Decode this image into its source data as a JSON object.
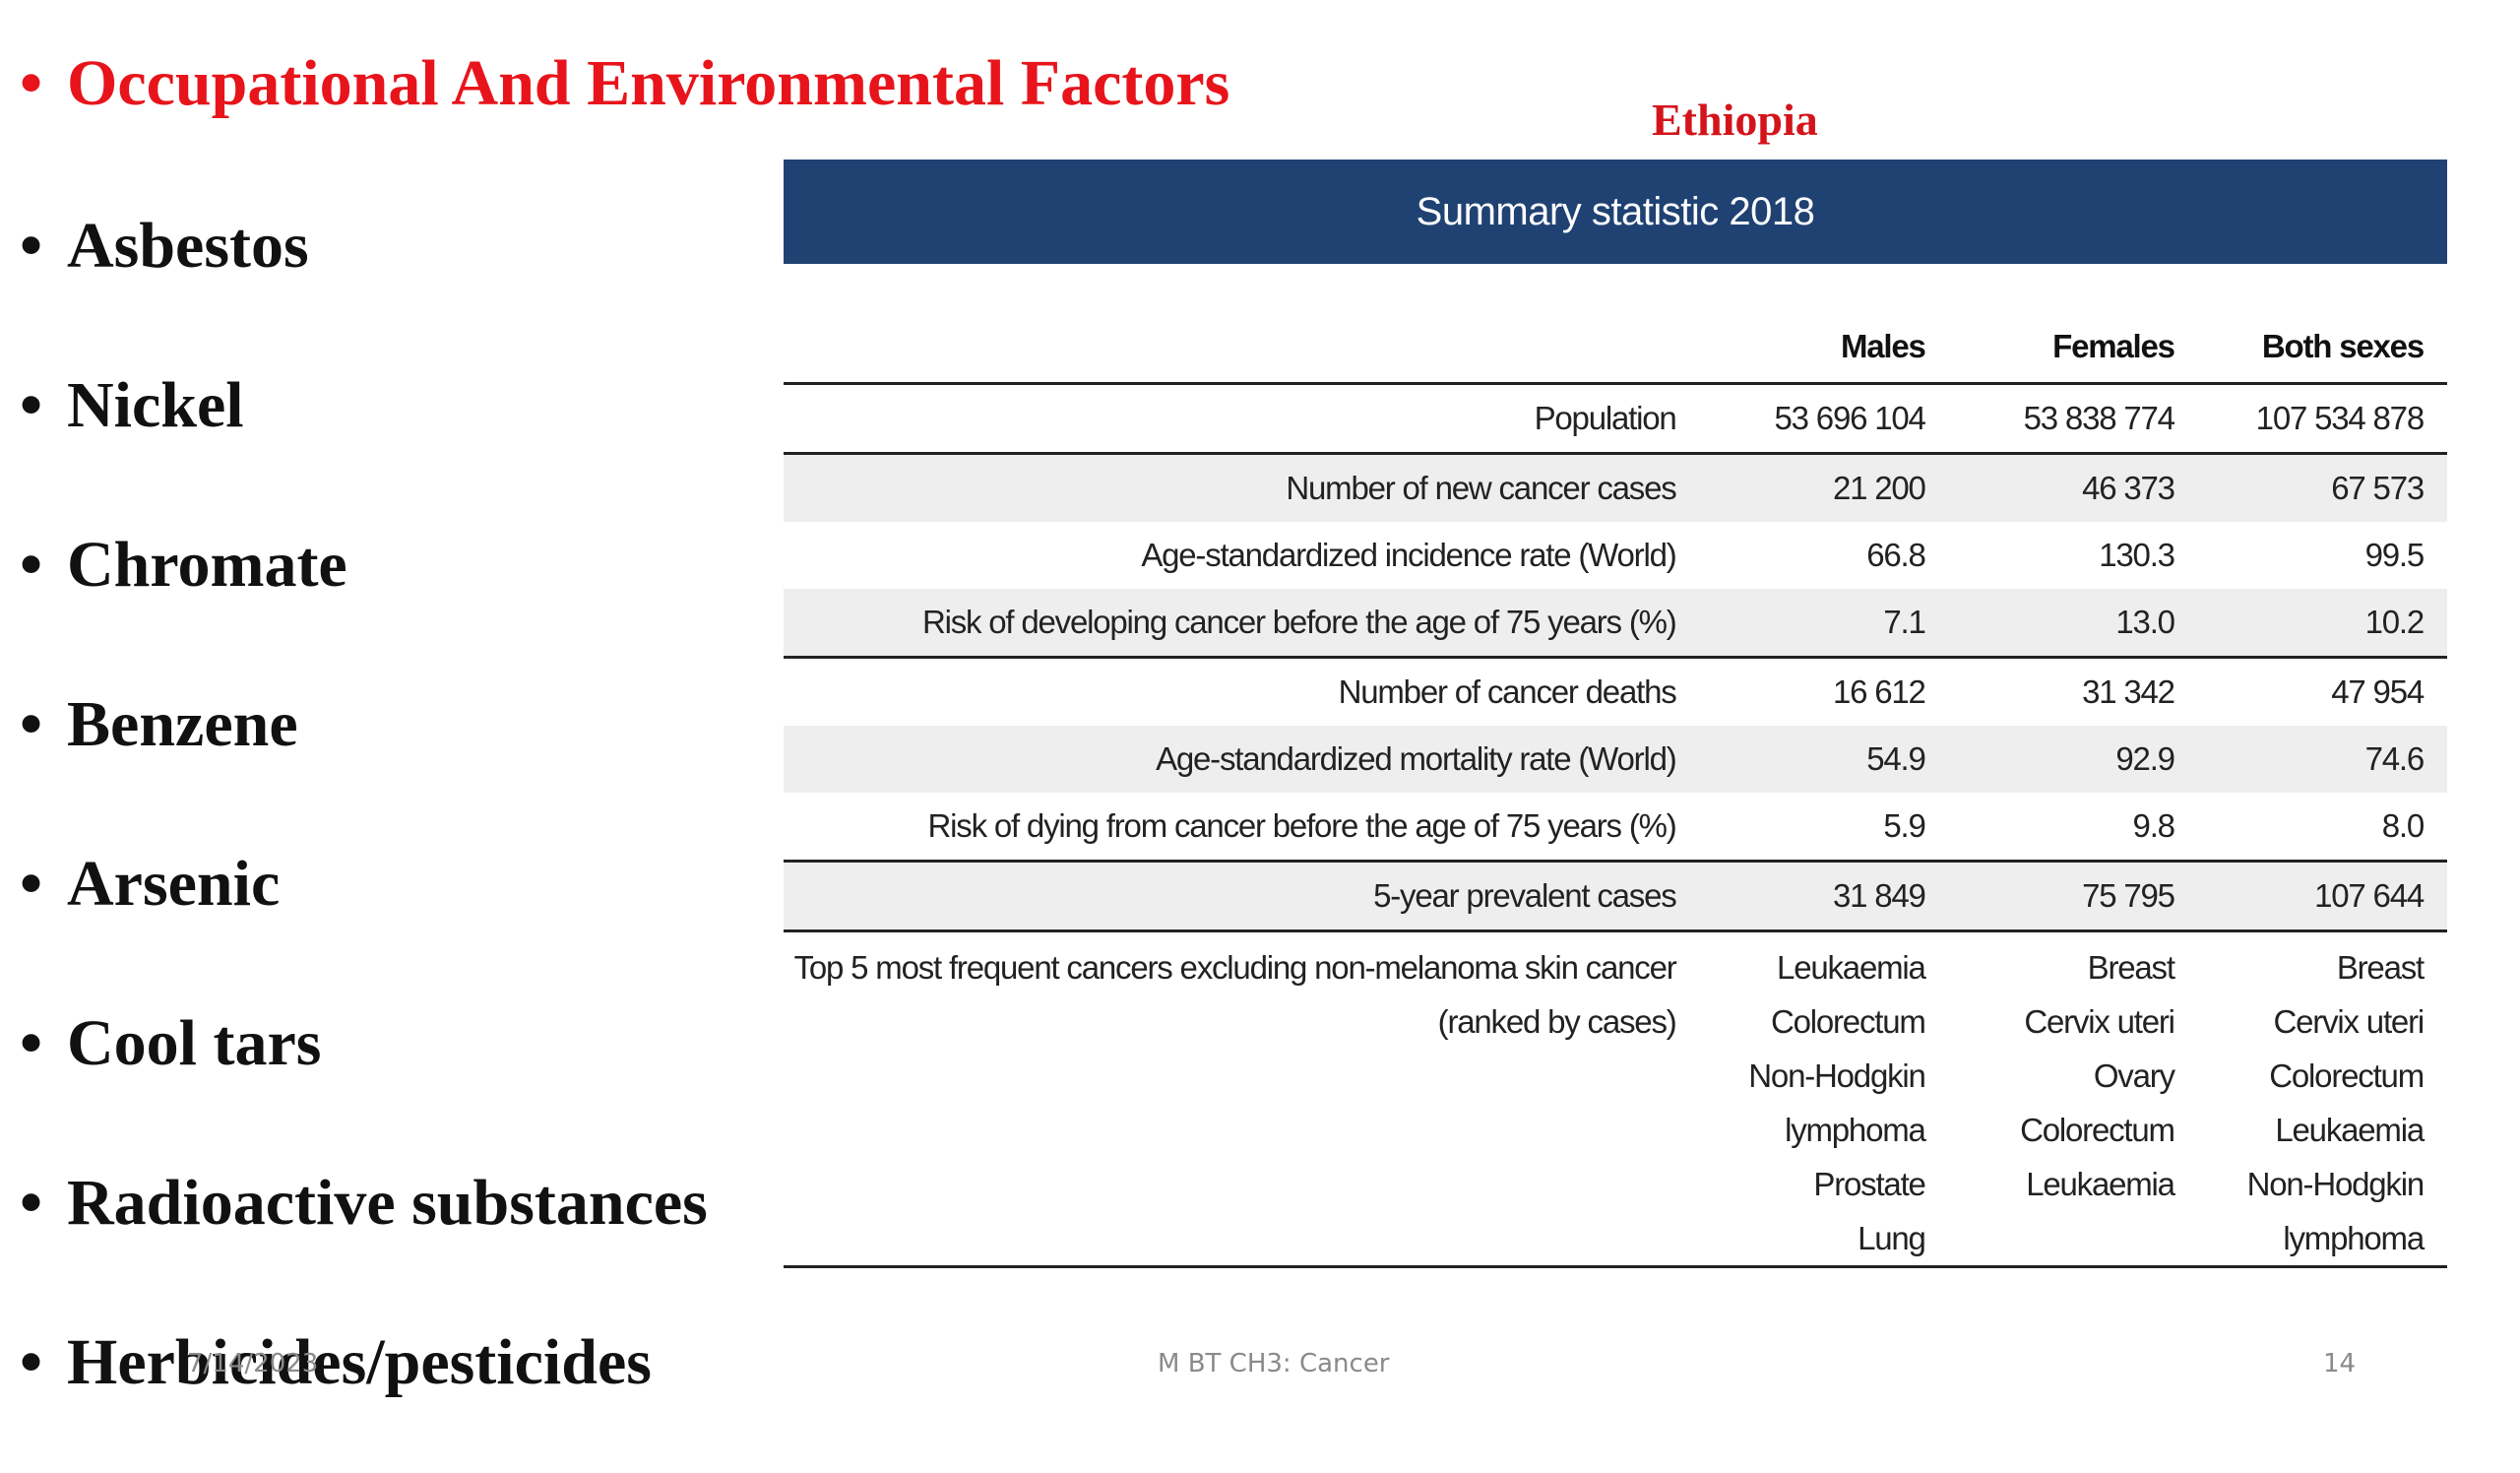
{
  "slide": {
    "title": "Occupational And Environmental Factors",
    "bullet_marker": "•",
    "bullets": [
      "Asbestos",
      "Nickel",
      "Chromate",
      "Benzene",
      "Arsenic",
      "Cool tars",
      "Radioactive substances",
      "Herbicides/pesticides"
    ],
    "country": "Ethiopia",
    "colors": {
      "title": "#e8141b",
      "country": "#d4141b",
      "table_header_bg": "#1f4273",
      "row_shade": "#eeeeee"
    }
  },
  "table": {
    "header": "Summary statistic 2018",
    "columns": [
      "Males",
      "Females",
      "Both sexes"
    ],
    "rows": [
      {
        "label": "Population",
        "values": [
          "53 696 104",
          "53 838 774",
          "107 534 878"
        ]
      },
      {
        "label": "Number of new cancer cases",
        "values": [
          "21 200",
          "46 373",
          "67 573"
        ]
      },
      {
        "label": "Age-standardized incidence rate (World)",
        "values": [
          "66.8",
          "130.3",
          "99.5"
        ]
      },
      {
        "label": "Risk of developing cancer before the age of 75 years (%)",
        "values": [
          "7.1",
          "13.0",
          "10.2"
        ]
      },
      {
        "label": "Number of cancer deaths",
        "values": [
          "16 612",
          "31 342",
          "47 954"
        ]
      },
      {
        "label": "Age-standardized mortality rate (World)",
        "values": [
          "54.9",
          "92.9",
          "74.6"
        ]
      },
      {
        "label": "Risk of dying from cancer before the age of 75 years (%)",
        "values": [
          "5.9",
          "9.8",
          "8.0"
        ]
      },
      {
        "label": "5-year prevalent cases",
        "values": [
          "31 849",
          "75 795",
          "107 644"
        ]
      }
    ],
    "top5": {
      "label_line1": "Top 5 most frequent cancers excluding non-melanoma skin cancer",
      "label_line2": "(ranked by cases)",
      "males": [
        "Leukaemia",
        "Colorectum",
        "Non-Hodgkin",
        "lymphoma",
        "Prostate",
        "Lung"
      ],
      "females": [
        "Breast",
        "Cervix uteri",
        "Ovary",
        "Colorectum",
        "Leukaemia"
      ],
      "both": [
        "Breast",
        "Cervix uteri",
        "Colorectum",
        "Leukaemia",
        "Non-Hodgkin",
        "lymphoma"
      ]
    }
  },
  "footer": {
    "date": "7/14/2023",
    "center": "M BT CH3: Cancer",
    "page": "14"
  }
}
